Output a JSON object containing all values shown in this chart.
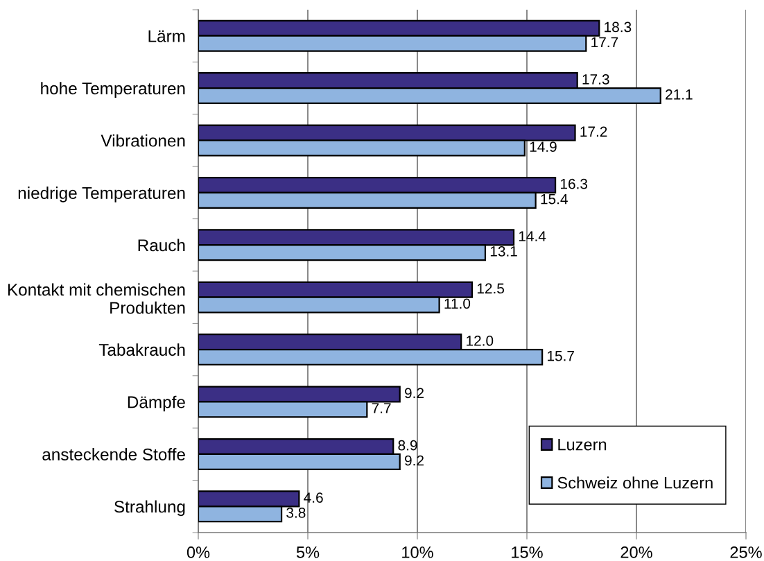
{
  "chart_data": {
    "type": "bar",
    "orientation": "horizontal",
    "categories": [
      "Lärm",
      "hohe Temperaturen",
      "Vibrationen",
      "niedrige Temperaturen",
      "Rauch",
      "Kontakt mit chemischen\nProdukten",
      "Tabakrauch",
      "Dämpfe",
      "ansteckende Stoffe",
      "Strahlung"
    ],
    "series": [
      {
        "name": "Luzern",
        "color": "#3b2f85",
        "values": [
          18.3,
          17.3,
          17.2,
          16.3,
          14.4,
          12.5,
          12.0,
          9.2,
          8.9,
          4.6
        ],
        "value_labels": [
          "18.3",
          "17.3",
          "17.2",
          "16.3",
          "14.4",
          "12.5",
          "12.0",
          "9.2",
          "8.9",
          "4.6"
        ]
      },
      {
        "name": "Schweiz ohne Luzern",
        "color": "#8fb4e0",
        "values": [
          17.7,
          21.1,
          14.9,
          15.4,
          13.1,
          11.0,
          15.7,
          7.7,
          9.2,
          3.8
        ],
        "value_labels": [
          "17.7",
          "21.1",
          "14.9",
          "15.4",
          "13.1",
          "11.0",
          "15.7",
          "7.7",
          "9.2",
          "3.8"
        ]
      }
    ],
    "xlim": [
      0,
      25
    ],
    "xticks": [
      {
        "value": 0,
        "label": "0%"
      },
      {
        "value": 5,
        "label": "5%"
      },
      {
        "value": 10,
        "label": "10%"
      },
      {
        "value": 15,
        "label": "15%"
      },
      {
        "value": 20,
        "label": "20%"
      },
      {
        "value": 25,
        "label": "25%"
      }
    ],
    "grid": "x",
    "legend": "bottom right"
  }
}
